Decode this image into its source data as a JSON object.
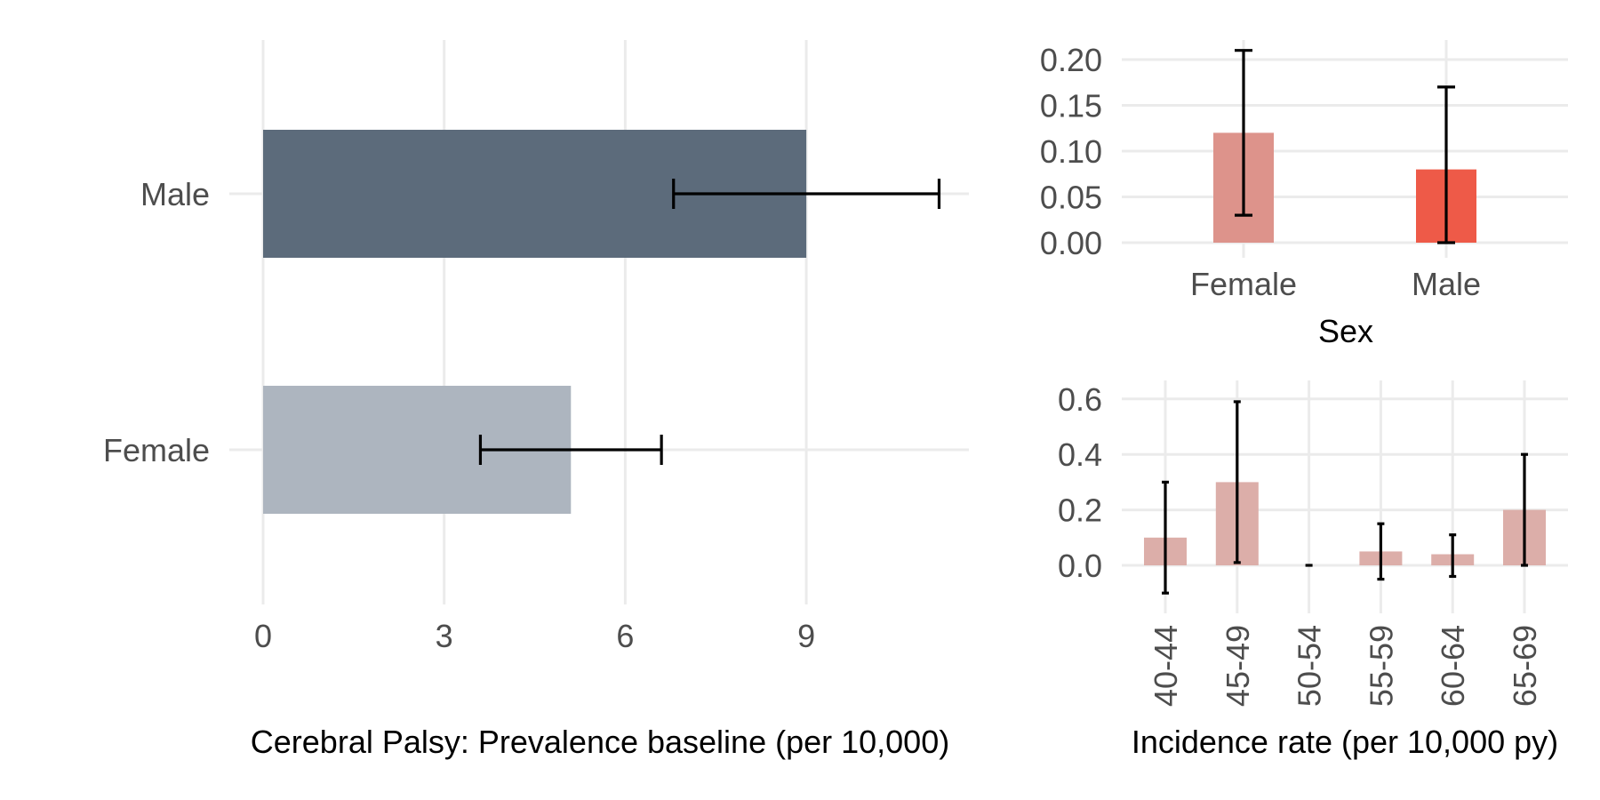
{
  "chart_data": [
    {
      "id": "prevalence",
      "type": "bar",
      "orientation": "horizontal",
      "title": "",
      "xlabel": "Cerebral Palsy: Prevalence baseline (per 10,000)",
      "ylabel": "",
      "xlim": [
        0,
        11.8
      ],
      "xticks": [
        "0",
        "3",
        "6",
        "9"
      ],
      "xtick_values": [
        0,
        3,
        6,
        9
      ],
      "categories": [
        "Male",
        "Female"
      ],
      "values": [
        9.0,
        5.1
      ],
      "ci_low": [
        6.8,
        3.6
      ],
      "ci_high": [
        11.2,
        6.6
      ],
      "colors": [
        "#5c6b7b",
        "#adb5bf"
      ],
      "grid": true,
      "legend": "none"
    },
    {
      "id": "incidence-sex",
      "type": "bar",
      "title": "",
      "xlabel": "Sex",
      "ylabel": "",
      "ylim": [
        -0.005,
        0.215
      ],
      "yticks": [
        "0.00",
        "0.05",
        "0.10",
        "0.15",
        "0.20"
      ],
      "ytick_values": [
        0,
        0.05,
        0.1,
        0.15,
        0.2
      ],
      "categories": [
        "Female",
        "Male"
      ],
      "values": [
        0.12,
        0.08
      ],
      "ci_low": [
        0.03,
        0.0
      ],
      "ci_high": [
        0.21,
        0.17
      ],
      "colors": [
        "#dd938b",
        "#ee5a48"
      ],
      "grid": true,
      "legend": "none"
    },
    {
      "id": "incidence-age",
      "type": "bar",
      "title": "",
      "xlabel": "Incidence rate (per 10,000 py)",
      "ylabel": "",
      "ylim": [
        -0.13,
        0.62
      ],
      "yticks": [
        "0.0",
        "0.2",
        "0.4",
        "0.6"
      ],
      "ytick_values": [
        0,
        0.2,
        0.4,
        0.6
      ],
      "categories": [
        "40-44",
        "45-49",
        "50-54",
        "55-59",
        "60-64",
        "65-69"
      ],
      "values": [
        0.1,
        0.3,
        0.0,
        0.05,
        0.04,
        0.2
      ],
      "ci_low": [
        -0.1,
        0.01,
        0.0,
        -0.05,
        -0.04,
        0.0
      ],
      "ci_high": [
        0.3,
        0.59,
        0.0,
        0.15,
        0.11,
        0.4
      ],
      "colors": [
        "#dcaea9"
      ],
      "grid": true,
      "legend": "none"
    }
  ]
}
